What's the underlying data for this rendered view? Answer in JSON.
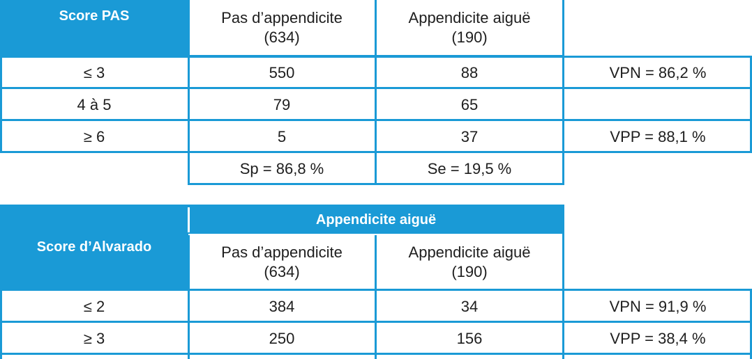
{
  "table1": {
    "score_header": "Score PAS",
    "col_no": [
      "Pas d’appendicite",
      "(634)"
    ],
    "col_yes": [
      "Appendicite aiguë",
      "(190)"
    ],
    "rows": [
      {
        "score": "≤ 3",
        "no": "550",
        "yes": "88",
        "stat": "VPN = 86,2 %"
      },
      {
        "score": "4 à 5",
        "no": "79",
        "yes": "65",
        "stat": ""
      },
      {
        "score": "≥ 6",
        "no": "5",
        "yes": "37",
        "stat": "VPP = 88,1 %"
      }
    ],
    "footer": {
      "sp": "Sp = 86,8 %",
      "se": "Se = 19,5 %"
    }
  },
  "table2": {
    "score_header": "Score d’Alvarado",
    "group_header": "Appendicite aiguë",
    "col_no": [
      "Pas d’appendicite",
      "(634)"
    ],
    "col_yes": [
      "Appendicite aiguë",
      "(190)"
    ],
    "rows": [
      {
        "score": "≤ 2",
        "no": "384",
        "yes": "34",
        "stat": "VPN = 91,9 %"
      },
      {
        "score": "≥ 3",
        "no": "250",
        "yes": "156",
        "stat": "VPP = 38,4 %"
      }
    ]
  }
}
